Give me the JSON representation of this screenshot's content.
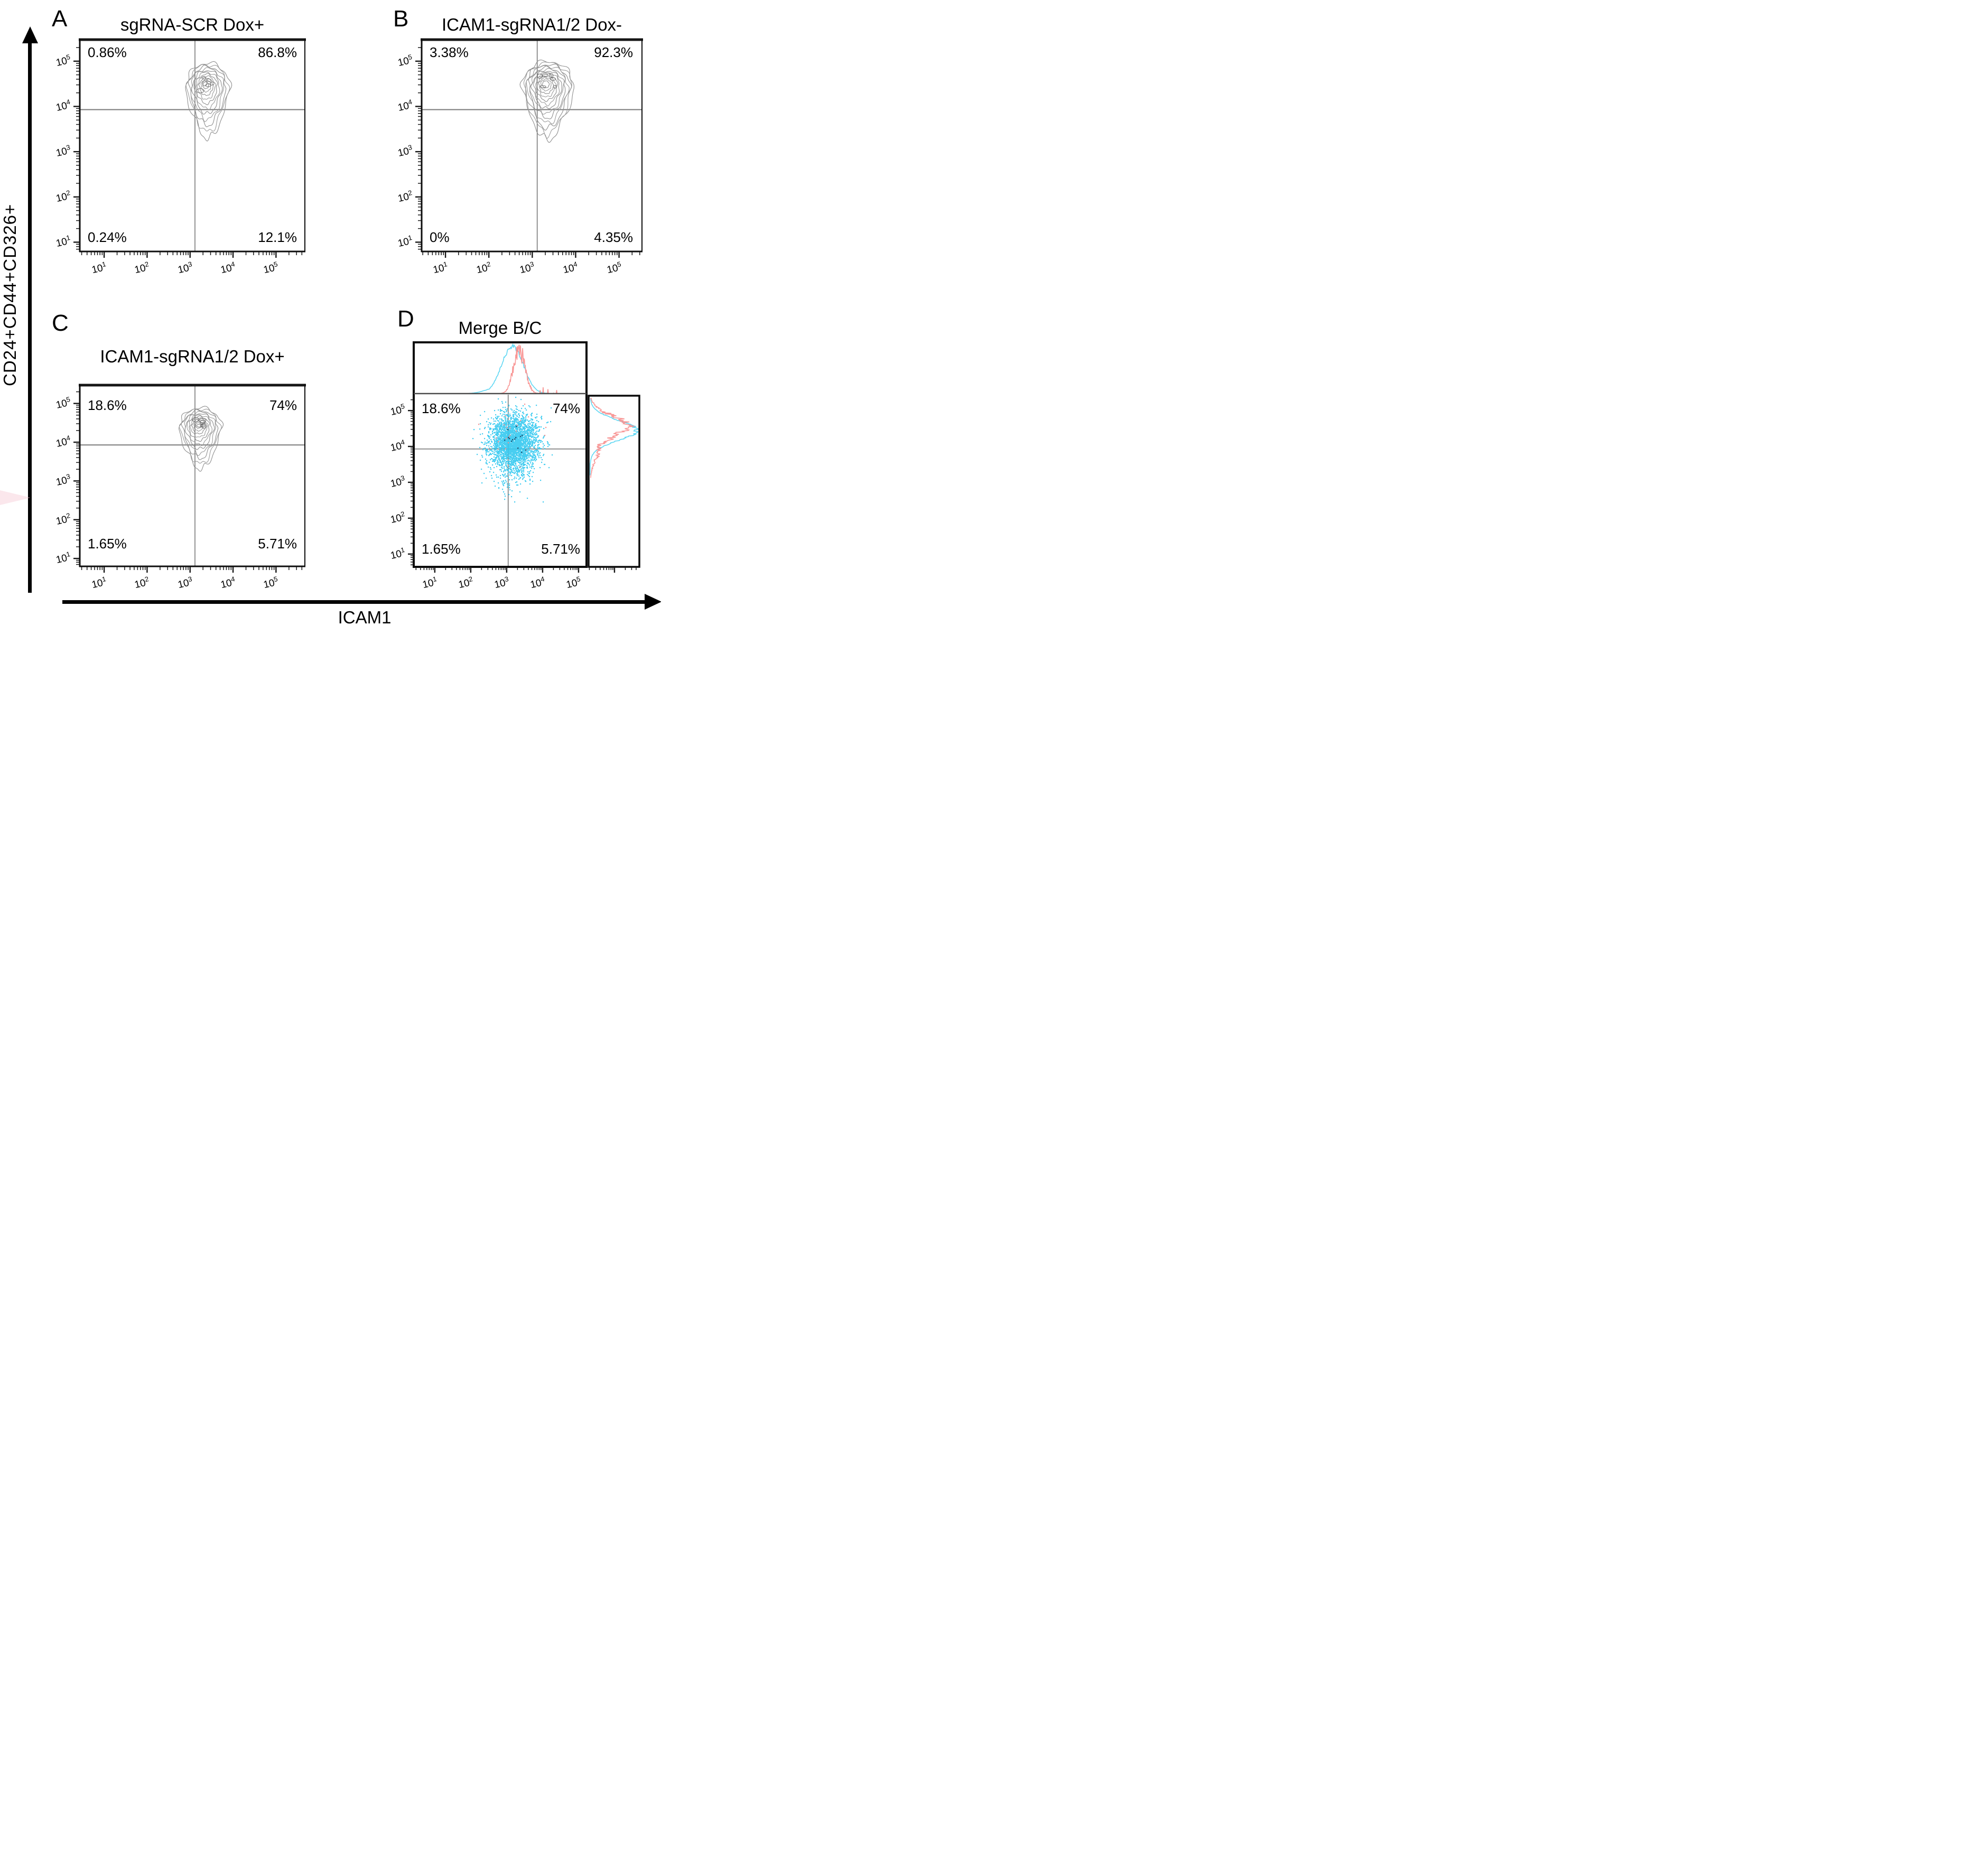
{
  "figure": {
    "x_axis_label": "ICAM1",
    "y_axis_label": "CD24+CD44+CD326+"
  },
  "panels": [
    {
      "letter": "A",
      "title": "sgRNA-SCR Dox+",
      "quadrants": {
        "top_left": "0.86%",
        "top_right": "86.8%",
        "bottom_left": "0.24%",
        "bottom_right": "12.1%"
      }
    },
    {
      "letter": "B",
      "title": "ICAM1-sgRNA1/2 Dox-",
      "quadrants": {
        "top_left": "3.38%",
        "top_right": "92.3%",
        "bottom_left": "0%",
        "bottom_right": "4.35%"
      }
    },
    {
      "letter": "C",
      "title": "ICAM1-sgRNA1/2 Dox+",
      "quadrants": {
        "top_left": "18.6%",
        "top_right": "74%",
        "bottom_left": "1.65%",
        "bottom_right": "5.71%"
      }
    },
    {
      "letter": "D",
      "title": "Merge B/C",
      "quadrants": {
        "top_left": "18.6%",
        "top_right": "74%",
        "bottom_left": "1.65%",
        "bottom_right": "5.71%"
      }
    }
  ],
  "chart_data": [
    {
      "panel": "A",
      "type": "contour",
      "title": "sgRNA-SCR Dox+",
      "x_axis": {
        "label": "ICAM1",
        "scale": "log",
        "ticks": [
          "10^1",
          "10^2",
          "10^3",
          "10^4",
          "10^5"
        ]
      },
      "y_axis": {
        "label": "CD24+CD44+CD326+",
        "scale": "log",
        "ticks": [
          "10^1",
          "10^2",
          "10^3",
          "10^4",
          "10^5"
        ]
      },
      "gate": {
        "x": 1300,
        "y": 8500
      },
      "population": {
        "center_x": 2600,
        "center_y": 24000,
        "spread_x_decades": 0.52,
        "spread_y_decades": 0.58,
        "tail_down_decades": 1.15,
        "rings": 11
      },
      "quadrant_percent": {
        "top_left": 0.86,
        "top_right": 86.8,
        "bottom_left": 0.24,
        "bottom_right": 12.1
      }
    },
    {
      "panel": "B",
      "type": "contour",
      "title": "ICAM1-sgRNA1/2 Dox-",
      "x_axis": {
        "label": "ICAM1",
        "scale": "log",
        "ticks": [
          "10^1",
          "10^2",
          "10^3",
          "10^4",
          "10^5"
        ]
      },
      "y_axis": {
        "label": "CD24+CD44+CD326+",
        "scale": "log",
        "ticks": [
          "10^1",
          "10^2",
          "10^3",
          "10^4",
          "10^5"
        ]
      },
      "gate": {
        "x": 1300,
        "y": 8500
      },
      "population": {
        "center_x": 2300,
        "center_y": 25000,
        "spread_x_decades": 0.6,
        "spread_y_decades": 0.6,
        "tail_down_decades": 1.2,
        "rings": 13
      },
      "quadrant_percent": {
        "top_left": 3.38,
        "top_right": 92.3,
        "bottom_left": 0,
        "bottom_right": 4.35
      }
    },
    {
      "panel": "C",
      "type": "contour",
      "title": "ICAM1-sgRNA1/2 Dox+",
      "x_axis": {
        "label": "ICAM1",
        "scale": "log",
        "ticks": [
          "10^1",
          "10^2",
          "10^3",
          "10^4",
          "10^5"
        ]
      },
      "y_axis": {
        "label": "CD24+CD44+CD326+",
        "scale": "log",
        "ticks": [
          "10^1",
          "10^2",
          "10^3",
          "10^4",
          "10^5"
        ]
      },
      "gate": {
        "x": 1300,
        "y": 8500
      },
      "population": {
        "center_x": 1750,
        "center_y": 22000,
        "spread_x_decades": 0.5,
        "spread_y_decades": 0.55,
        "tail_down_decades": 1.1,
        "rings": 11
      },
      "quadrant_percent": {
        "top_left": 18.6,
        "top_right": 74,
        "bottom_left": 1.65,
        "bottom_right": 5.71
      }
    },
    {
      "panel": "D",
      "type": "dot_plot_with_marginal_histograms",
      "title": "Merge B/C",
      "x_axis": {
        "label": "ICAM1",
        "scale": "log",
        "ticks": [
          "10^1",
          "10^2",
          "10^3",
          "10^4",
          "10^5"
        ]
      },
      "y_axis": {
        "label": "CD24+CD44+CD326+",
        "scale": "log",
        "ticks": [
          "10^1",
          "10^2",
          "10^3",
          "10^4",
          "10^5"
        ]
      },
      "gate": {
        "x": 1100,
        "y": 8500
      },
      "series": [
        {
          "name": "C (cyan)",
          "color": "#35c9f0",
          "dot_population": {
            "center_x": 1500,
            "center_y": 14500,
            "spread_x_decades": 0.33,
            "spread_y_decades": 0.38,
            "n_dots": 3200
          }
        },
        {
          "name": "B (red)",
          "color": "#f8908f"
        }
      ],
      "top_histogram": [
        {
          "series": "C (cyan)",
          "color": "#55d5f2",
          "peak_x": 1450,
          "width_decades": 0.3,
          "style": "smooth"
        },
        {
          "series": "B (red)",
          "color": "#f8908f",
          "peak_x": 2250,
          "width_decades": 0.16,
          "style": "jagged"
        }
      ],
      "right_histogram": [
        {
          "series": "C (cyan)",
          "color": "#55d5f2",
          "peak_y": 28000,
          "width_decades": 0.28,
          "style": "smooth"
        },
        {
          "series": "B (red)",
          "color": "#f8908f",
          "peak_y": 35000,
          "width_decades": 0.3,
          "style": "jagged"
        }
      ],
      "quadrant_percent": {
        "top_left": 18.6,
        "top_right": 74,
        "bottom_left": 1.65,
        "bottom_right": 5.71
      }
    }
  ]
}
